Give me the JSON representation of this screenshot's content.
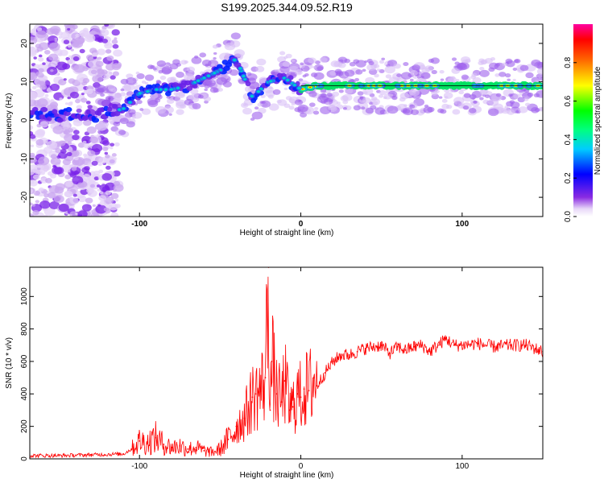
{
  "title": "S199.2025.344.09.52.R19",
  "colors": {
    "signal": "#ff0000",
    "frame": "#000000",
    "line": "#000000"
  },
  "chart_data": [
    {
      "type": "heatmap",
      "xlabel": "Height of straight line (km)",
      "ylabel": "Frequency (Hz)",
      "xlim": [
        -168,
        150
      ],
      "ylim": [
        -25,
        25
      ],
      "xticks": [
        -100,
        0,
        100
      ],
      "yticks": [
        -20,
        -10,
        0,
        10,
        20
      ],
      "colorbar": {
        "label": "Normalized spectral amplitude",
        "range": [
          0,
          1
        ],
        "ticks": [
          0.0,
          0.2,
          0.4,
          0.6,
          0.8
        ],
        "tick_labels": [
          "0.0",
          "0.2",
          "0.4",
          "0.6",
          "0.8"
        ],
        "colormap": "rainbow (white-purple-blue-cyan-green-yellow-red-magenta)"
      },
      "trace": {
        "description": "Dominant spectral ridge frequency vs height",
        "x": [
          -168,
          -160,
          -150,
          -140,
          -130,
          -120,
          -110,
          -100,
          -90,
          -80,
          -70,
          -60,
          -50,
          -40,
          -30,
          -20,
          -10,
          0,
          10,
          20,
          40,
          60,
          80,
          100,
          120,
          150
        ],
        "y": [
          2,
          2,
          1,
          2,
          1,
          2,
          3,
          7,
          8,
          8,
          9,
          11,
          13,
          16,
          6,
          10,
          11,
          8,
          9,
          9,
          9,
          9,
          9,
          9,
          9,
          9
        ]
      }
    },
    {
      "type": "line",
      "xlabel": "Height of straight line (km)",
      "ylabel": "SNR (10 * v/v)",
      "xlim": [
        -168,
        150
      ],
      "ylim": [
        0,
        1180
      ],
      "xticks": [
        -100,
        0,
        100
      ],
      "yticks": [
        0,
        200,
        400,
        600,
        800,
        1000
      ],
      "series": [
        {
          "x": [
            -168,
            -150,
            -130,
            -110,
            -105,
            -100,
            -95,
            -90,
            -85,
            -80,
            -75,
            -70,
            -65,
            -60,
            -55,
            -50,
            -45,
            -40,
            -35,
            -30,
            -28,
            -25,
            -22,
            -20,
            -19,
            -18,
            -15,
            -12,
            -10,
            -7,
            -5,
            -2,
            0,
            2,
            5,
            8,
            10,
            15,
            20,
            25,
            30,
            35,
            40,
            45,
            50,
            55,
            60,
            65,
            70,
            75,
            80,
            85,
            90,
            95,
            100,
            110,
            120,
            130,
            140,
            150
          ],
          "y": [
            20,
            20,
            25,
            30,
            60,
            110,
            100,
            130,
            90,
            70,
            80,
            60,
            70,
            50,
            40,
            60,
            120,
            200,
            250,
            380,
            400,
            420,
            500,
            1180,
            300,
            600,
            400,
            350,
            480,
            300,
            320,
            400,
            380,
            430,
            420,
            500,
            450,
            530,
            600,
            640,
            640,
            660,
            680,
            690,
            700,
            650,
            690,
            670,
            690,
            700,
            660,
            700,
            740,
            700,
            700,
            710,
            690,
            700,
            700,
            660
          ]
        }
      ]
    }
  ]
}
